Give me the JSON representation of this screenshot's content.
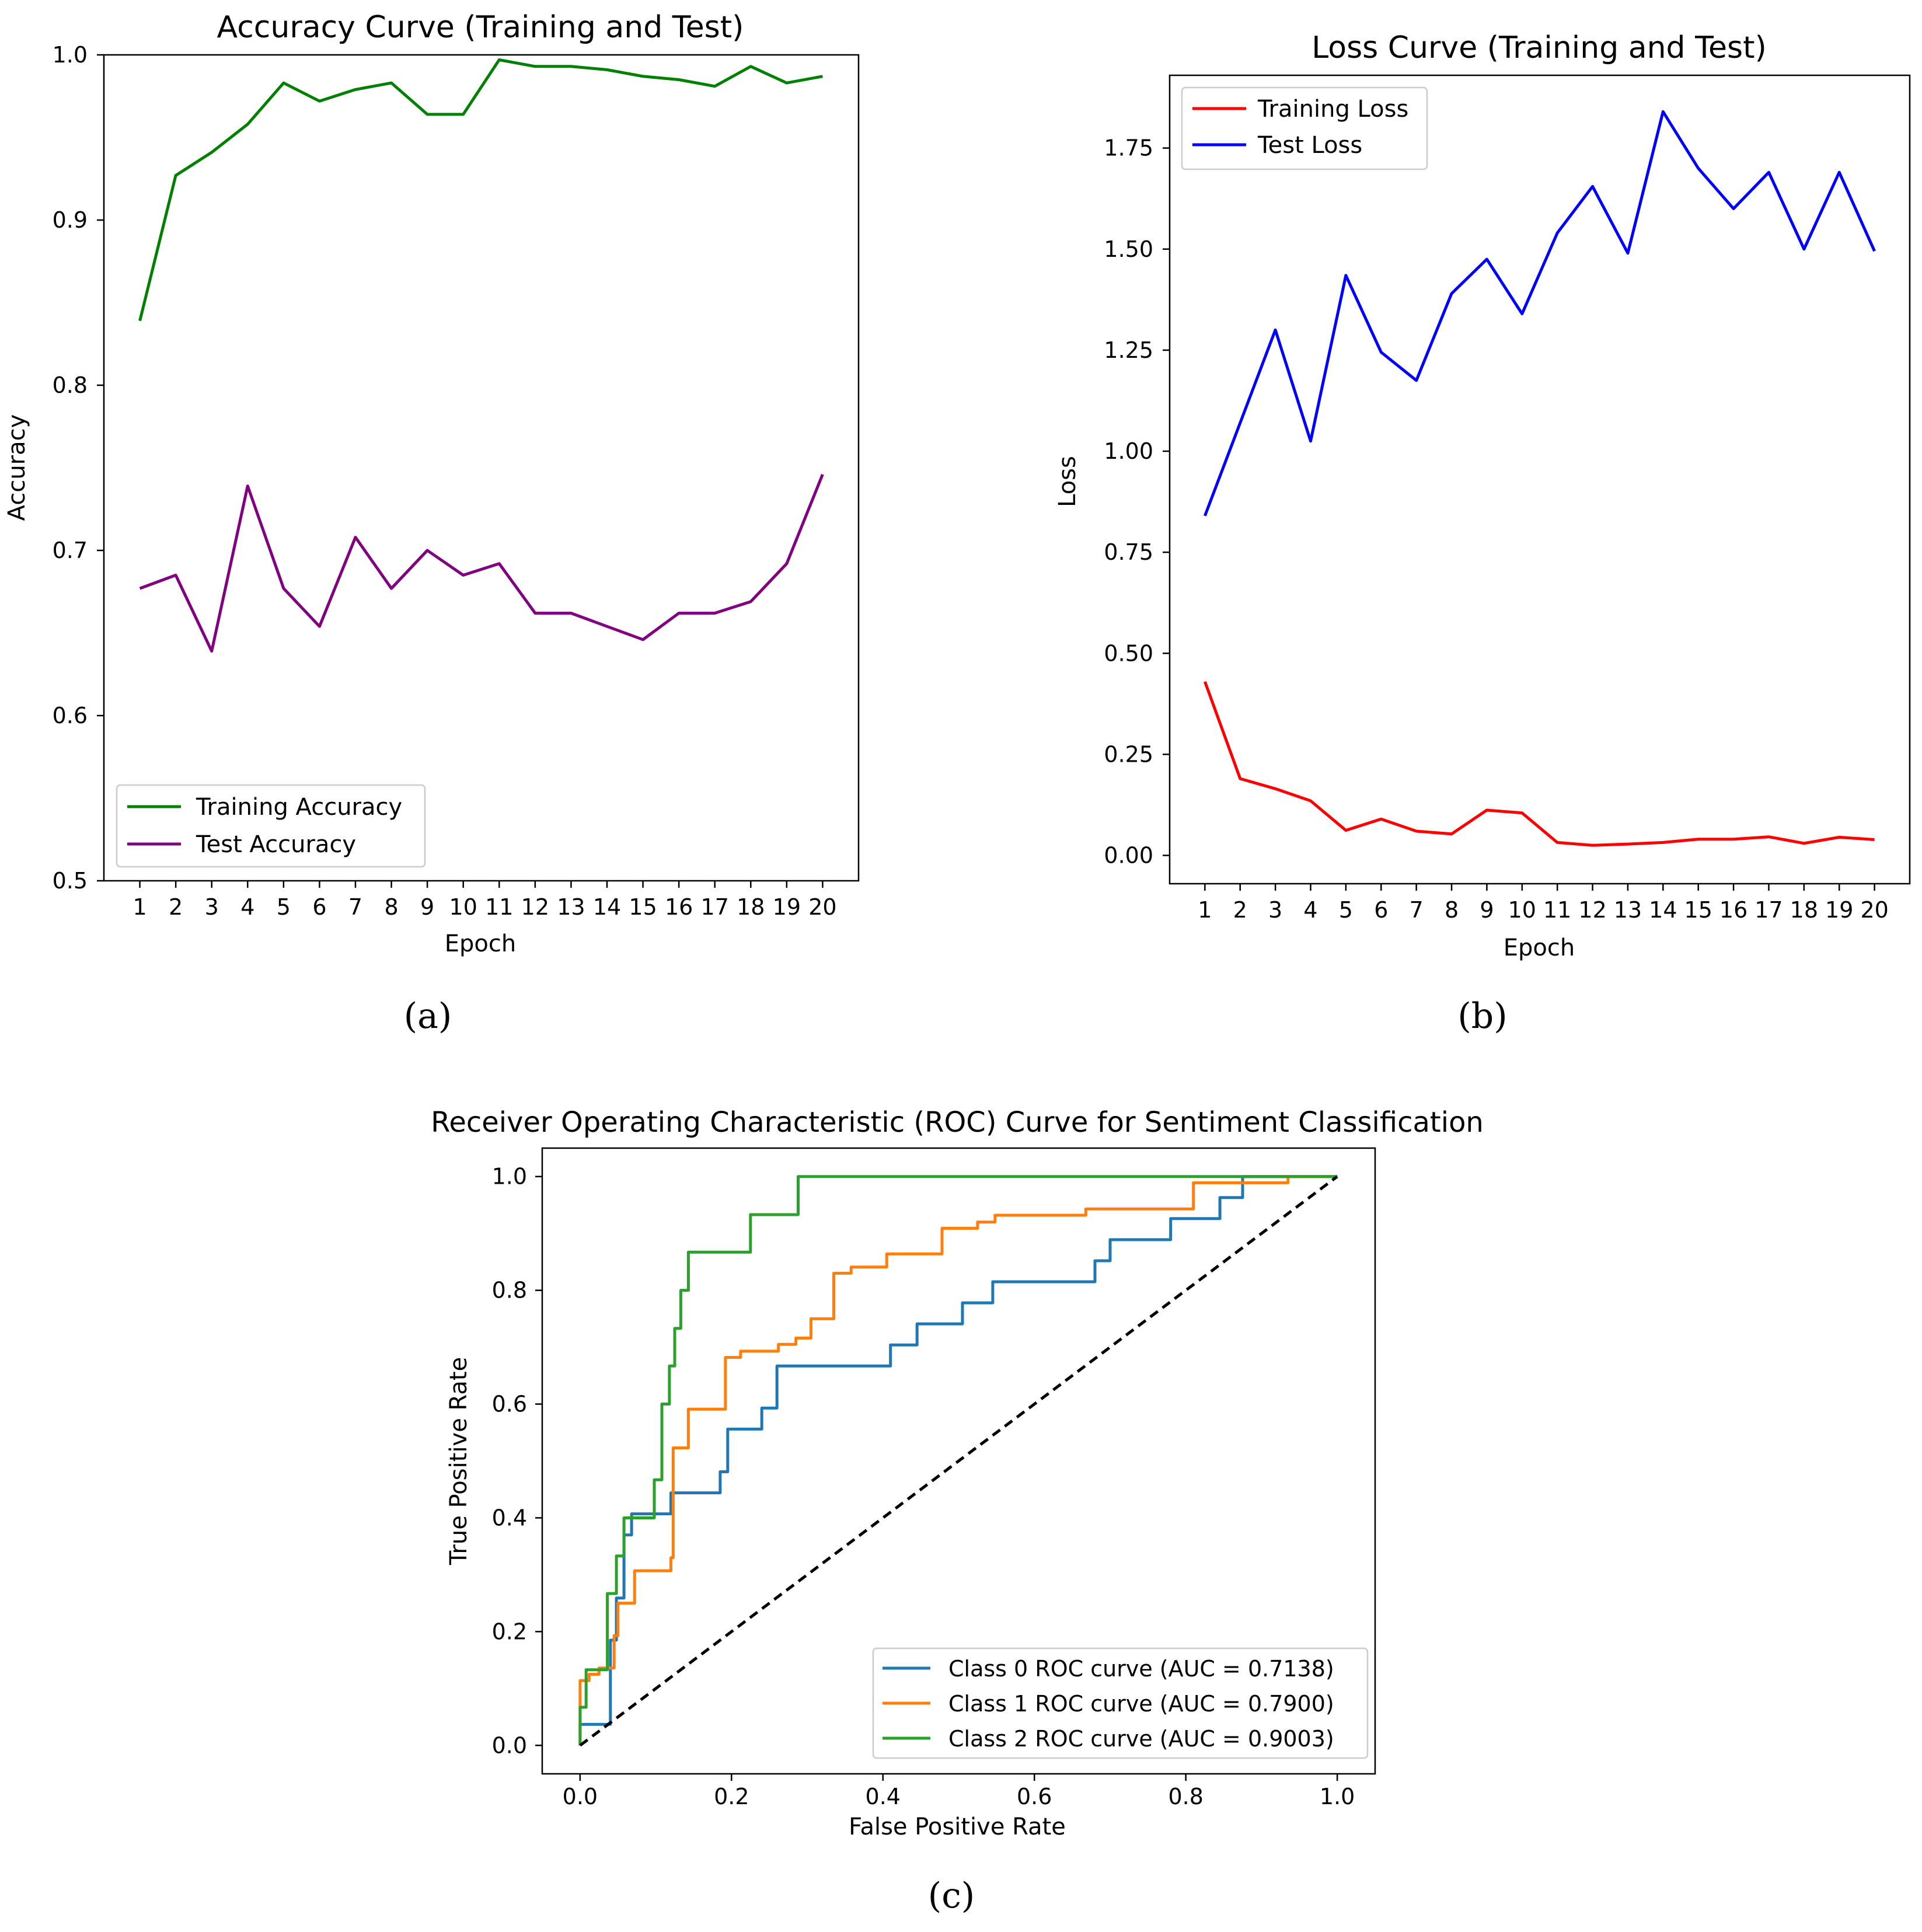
{
  "chart_data": [
    {
      "id": "a",
      "panel_label": "(a)",
      "type": "line",
      "title": "Accuracy Curve (Training and Test)",
      "xlabel": "Epoch",
      "ylabel": "Accuracy",
      "x": [
        1,
        2,
        3,
        4,
        5,
        6,
        7,
        8,
        9,
        10,
        11,
        12,
        13,
        14,
        15,
        16,
        17,
        18,
        19,
        20
      ],
      "xticks": [
        "1",
        "2",
        "3",
        "4",
        "5",
        "6",
        "7",
        "8",
        "9",
        "10",
        "11",
        "12",
        "13",
        "14",
        "15",
        "16",
        "17",
        "18",
        "19",
        "20"
      ],
      "xlim": [
        0.0,
        21.0
      ],
      "ylim": [
        0.5,
        1.0
      ],
      "yticks": [
        0.5,
        0.6,
        0.7,
        0.8,
        0.9,
        1.0
      ],
      "yticklabels": [
        "0.5",
        "0.6",
        "0.7",
        "0.8",
        "0.9",
        "1.0"
      ],
      "legend_position": "lower-left",
      "series": [
        {
          "name": "Training Accuracy",
          "color": "#008000",
          "values": [
            0.839,
            0.927,
            0.941,
            0.958,
            0.983,
            0.972,
            0.979,
            0.983,
            0.964,
            0.964,
            0.997,
            0.993,
            0.993,
            0.991,
            0.987,
            0.985,
            0.981,
            0.993,
            0.983,
            0.987
          ]
        },
        {
          "name": "Test Accuracy",
          "color": "#800080",
          "values": [
            0.677,
            0.685,
            0.639,
            0.739,
            0.677,
            0.654,
            0.708,
            0.677,
            0.7,
            0.685,
            0.692,
            0.662,
            0.662,
            0.654,
            0.646,
            0.662,
            0.662,
            0.669,
            0.692,
            0.746
          ]
        }
      ]
    },
    {
      "id": "b",
      "panel_label": "(b)",
      "type": "line",
      "title": "Loss Curve (Training and Test)",
      "xlabel": "Epoch",
      "ylabel": "Loss",
      "x": [
        1,
        2,
        3,
        4,
        5,
        6,
        7,
        8,
        9,
        10,
        11,
        12,
        13,
        14,
        15,
        16,
        17,
        18,
        19,
        20
      ],
      "xticks": [
        "1",
        "2",
        "3",
        "4",
        "5",
        "6",
        "7",
        "8",
        "9",
        "10",
        "11",
        "12",
        "13",
        "14",
        "15",
        "16",
        "17",
        "18",
        "19",
        "20"
      ],
      "xlim": [
        0.0,
        21.0
      ],
      "ylim": [
        -0.07,
        1.93
      ],
      "yticks": [
        0,
        0.25,
        0.5,
        0.75,
        1.0,
        1.25,
        1.5,
        1.75
      ],
      "yticklabels": [
        "0.00",
        "0.25",
        "0.50",
        "0.75",
        "1.00",
        "1.25",
        "1.50",
        "1.75"
      ],
      "legend_position": "upper-left",
      "series": [
        {
          "name": "Training Loss",
          "color": "#ff0000",
          "values": [
            0.43,
            0.19,
            0.165,
            0.135,
            0.062,
            0.09,
            0.06,
            0.053,
            0.112,
            0.105,
            0.032,
            0.025,
            0.028,
            0.032,
            0.04,
            0.04,
            0.046,
            0.03,
            0.045,
            0.039
          ]
        },
        {
          "name": "Test Loss",
          "color": "#0000ff",
          "values": [
            0.84,
            1.07,
            1.3,
            1.025,
            1.435,
            1.245,
            1.175,
            1.39,
            1.475,
            1.34,
            1.54,
            1.655,
            1.49,
            1.84,
            1.7,
            1.6,
            1.69,
            1.5,
            1.69,
            1.495
          ]
        }
      ]
    },
    {
      "id": "c",
      "panel_label": "(c)",
      "type": "line",
      "title": "Receiver Operating Characteristic (ROC) Curve for Sentiment Classification",
      "xlabel": "False Positive Rate",
      "ylabel": "True Positive Rate",
      "xlim": [
        -0.05,
        1.05
      ],
      "ylim": [
        -0.05,
        1.05
      ],
      "xticks": [
        0,
        0.2,
        0.4,
        0.6,
        0.8,
        1.0
      ],
      "xticklabels": [
        "0.0",
        "0.2",
        "0.4",
        "0.6",
        "0.8",
        "1.0"
      ],
      "yticks": [
        0,
        0.2,
        0.4,
        0.6,
        0.8,
        1.0
      ],
      "yticklabels": [
        "0.0",
        "0.2",
        "0.4",
        "0.6",
        "0.8",
        "1.0"
      ],
      "legend_position": "lower-right",
      "series": [
        {
          "name": "Class 0 ROC curve (AUC = 0.7138)",
          "color": "#1f77b4",
          "step": true,
          "points": [
            [
              0,
              0
            ],
            [
              0,
              0.037
            ],
            [
              0.04,
              0.037
            ],
            [
              0.04,
              0.185
            ],
            [
              0.048,
              0.185
            ],
            [
              0.048,
              0.259
            ],
            [
              0.058,
              0.259
            ],
            [
              0.058,
              0.37
            ],
            [
              0.068,
              0.37
            ],
            [
              0.068,
              0.407
            ],
            [
              0.12,
              0.407
            ],
            [
              0.12,
              0.444
            ],
            [
              0.185,
              0.444
            ],
            [
              0.185,
              0.481
            ],
            [
              0.195,
              0.481
            ],
            [
              0.195,
              0.556
            ],
            [
              0.24,
              0.556
            ],
            [
              0.24,
              0.593
            ],
            [
              0.26,
              0.593
            ],
            [
              0.26,
              0.667
            ],
            [
              0.41,
              0.667
            ],
            [
              0.41,
              0.704
            ],
            [
              0.445,
              0.704
            ],
            [
              0.445,
              0.741
            ],
            [
              0.505,
              0.741
            ],
            [
              0.505,
              0.778
            ],
            [
              0.545,
              0.778
            ],
            [
              0.545,
              0.815
            ],
            [
              0.68,
              0.815
            ],
            [
              0.68,
              0.852
            ],
            [
              0.7,
              0.852
            ],
            [
              0.7,
              0.889
            ],
            [
              0.78,
              0.889
            ],
            [
              0.78,
              0.926
            ],
            [
              0.845,
              0.926
            ],
            [
              0.845,
              0.963
            ],
            [
              0.875,
              0.963
            ],
            [
              0.875,
              1.0
            ],
            [
              1,
              1
            ]
          ]
        },
        {
          "name": "Class 1 ROC curve (AUC = 0.7900)",
          "color": "#ff7f0e",
          "step": true,
          "points": [
            [
              0,
              0
            ],
            [
              0,
              0.114
            ],
            [
              0.012,
              0.114
            ],
            [
              0.012,
              0.125
            ],
            [
              0.025,
              0.125
            ],
            [
              0.025,
              0.136
            ],
            [
              0.045,
              0.136
            ],
            [
              0.045,
              0.193
            ],
            [
              0.05,
              0.193
            ],
            [
              0.05,
              0.25
            ],
            [
              0.072,
              0.25
            ],
            [
              0.072,
              0.307
            ],
            [
              0.12,
              0.307
            ],
            [
              0.12,
              0.33
            ],
            [
              0.123,
              0.33
            ],
            [
              0.123,
              0.523
            ],
            [
              0.143,
              0.523
            ],
            [
              0.143,
              0.591
            ],
            [
              0.192,
              0.591
            ],
            [
              0.192,
              0.682
            ],
            [
              0.212,
              0.682
            ],
            [
              0.212,
              0.693
            ],
            [
              0.262,
              0.693
            ],
            [
              0.262,
              0.705
            ],
            [
              0.285,
              0.705
            ],
            [
              0.285,
              0.716
            ],
            [
              0.305,
              0.716
            ],
            [
              0.305,
              0.75
            ],
            [
              0.335,
              0.75
            ],
            [
              0.335,
              0.83
            ],
            [
              0.358,
              0.83
            ],
            [
              0.358,
              0.841
            ],
            [
              0.405,
              0.841
            ],
            [
              0.405,
              0.864
            ],
            [
              0.478,
              0.864
            ],
            [
              0.478,
              0.909
            ],
            [
              0.525,
              0.909
            ],
            [
              0.525,
              0.92
            ],
            [
              0.548,
              0.92
            ],
            [
              0.548,
              0.932
            ],
            [
              0.668,
              0.932
            ],
            [
              0.668,
              0.943
            ],
            [
              0.81,
              0.943
            ],
            [
              0.81,
              0.989
            ],
            [
              0.935,
              0.989
            ],
            [
              0.935,
              1.0
            ],
            [
              1,
              1
            ]
          ]
        },
        {
          "name": "Class 2 ROC curve (AUC = 0.9003)",
          "color": "#2ca02c",
          "step": true,
          "points": [
            [
              0,
              0
            ],
            [
              0,
              0.067
            ],
            [
              0.008,
              0.067
            ],
            [
              0.008,
              0.133
            ],
            [
              0.036,
              0.133
            ],
            [
              0.036,
              0.267
            ],
            [
              0.048,
              0.267
            ],
            [
              0.048,
              0.333
            ],
            [
              0.058,
              0.333
            ],
            [
              0.058,
              0.4
            ],
            [
              0.098,
              0.4
            ],
            [
              0.098,
              0.467
            ],
            [
              0.108,
              0.467
            ],
            [
              0.108,
              0.6
            ],
            [
              0.118,
              0.6
            ],
            [
              0.118,
              0.667
            ],
            [
              0.125,
              0.667
            ],
            [
              0.125,
              0.733
            ],
            [
              0.133,
              0.733
            ],
            [
              0.133,
              0.8
            ],
            [
              0.143,
              0.8
            ],
            [
              0.143,
              0.867
            ],
            [
              0.225,
              0.867
            ],
            [
              0.225,
              0.933
            ],
            [
              0.288,
              0.933
            ],
            [
              0.288,
              1.0
            ],
            [
              1,
              1
            ]
          ]
        },
        {
          "name": "",
          "color": "#000000",
          "dashed": true,
          "in_legend": false,
          "points": [
            [
              0,
              0
            ],
            [
              1,
              1
            ]
          ]
        }
      ]
    }
  ]
}
